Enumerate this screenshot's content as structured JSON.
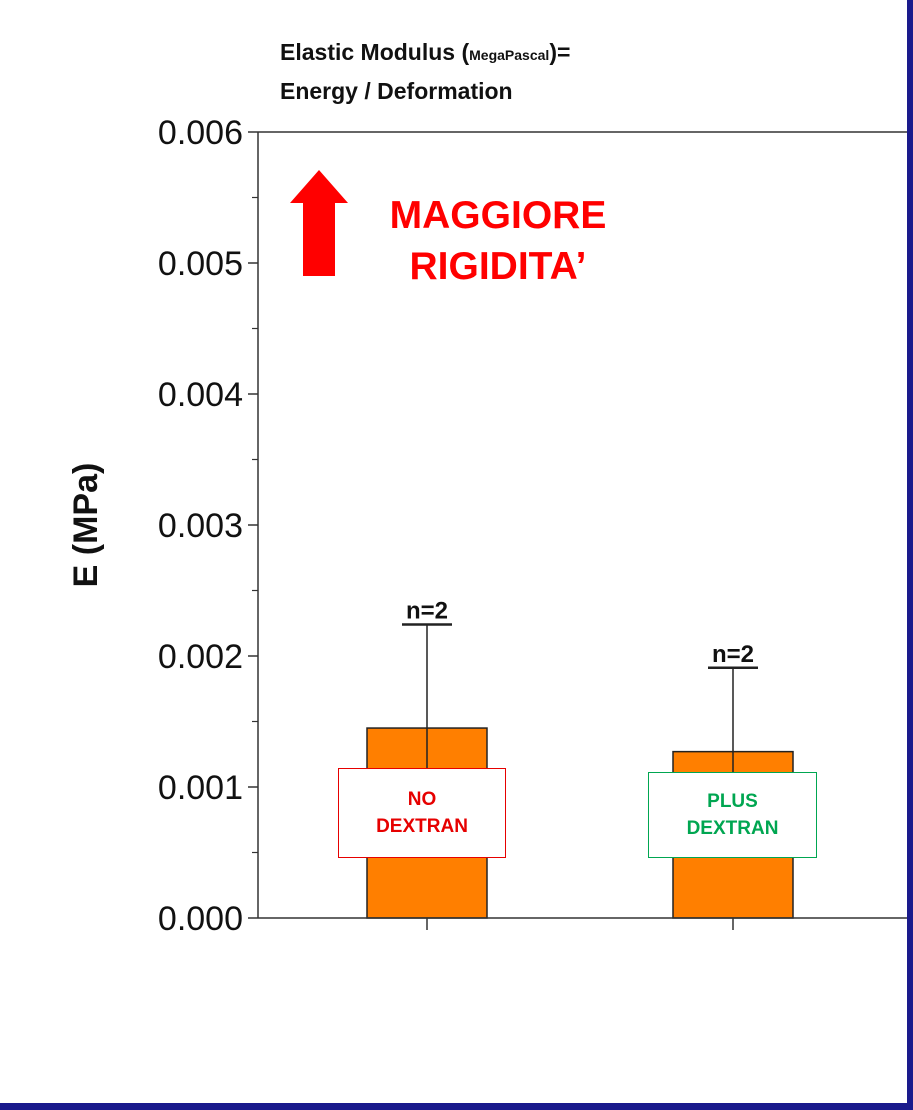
{
  "title": {
    "line1_prefix": "Elastic Modulus (",
    "line1_small": "MegaPascal",
    "line1_suffix": ")=",
    "line2": "Energy / Deformation"
  },
  "callout": {
    "line1": "MAGGIORE",
    "line2": "RIGIDITA’",
    "color": "#ff0000"
  },
  "colors": {
    "bar": "#ff7f00",
    "no_dextran": "#e60000",
    "plus_dextran": "#00a651",
    "frame": "#1a1a8c"
  },
  "chart_data": {
    "type": "bar",
    "categories": [
      "NO DEXTRAN",
      "PLUS DEXTRAN"
    ],
    "category_lines": [
      [
        "NO",
        "DEXTRAN"
      ],
      [
        "PLUS",
        "DEXTRAN"
      ]
    ],
    "values": [
      0.00145,
      0.00127
    ],
    "error_bars": [
      [
        0.00065,
        0.00224
      ],
      [
        0.00061,
        0.00191
      ]
    ],
    "annotations": [
      "n=2",
      "n=2"
    ],
    "ylabel": "E (MPa)",
    "xlabel": "",
    "ylim": [
      0,
      0.006
    ],
    "yticks": [
      "0.000",
      "0.001",
      "0.002",
      "0.003",
      "0.004",
      "0.005",
      "0.006"
    ],
    "minor_ticks": true,
    "grid": false
  }
}
